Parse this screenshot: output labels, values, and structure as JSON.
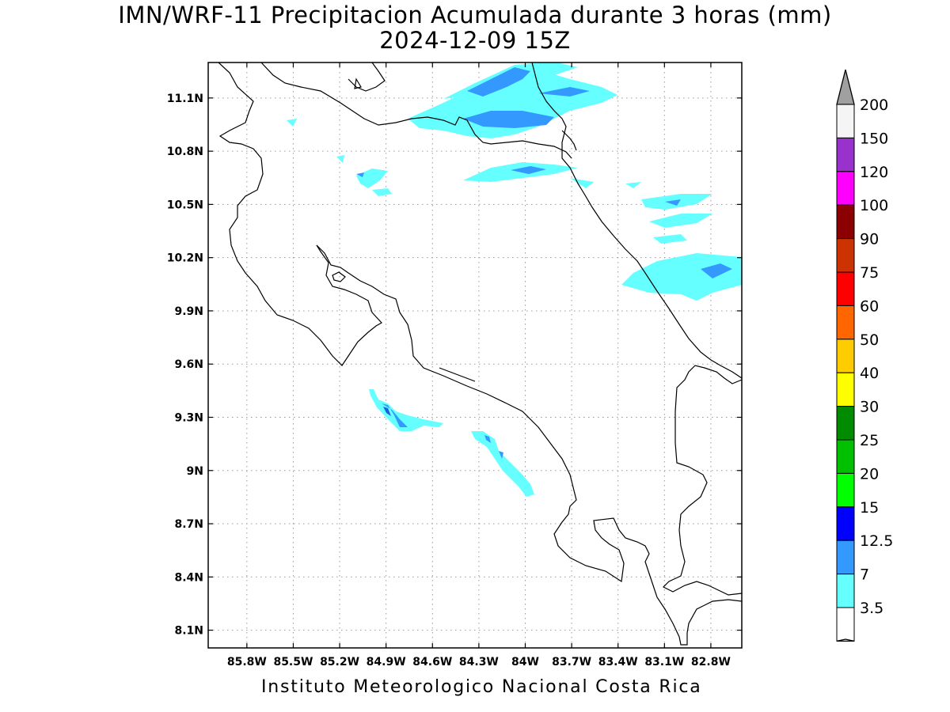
{
  "header": {
    "title": "IMN/WRF-11 Precipitacion Acumulada durante 3 horas (mm)",
    "date": "2024-12-09 15Z"
  },
  "footer": {
    "credit": "Instituto Meteorologico Nacional Costa Rica"
  },
  "map": {
    "lon_range": [
      -86.05,
      -82.6
    ],
    "lat_range": [
      8.0,
      11.3
    ],
    "grid": true,
    "lat_ticks": [
      {
        "value": 11.1,
        "label": "11.1N"
      },
      {
        "value": 10.8,
        "label": "10.8N"
      },
      {
        "value": 10.5,
        "label": "10.5N"
      },
      {
        "value": 10.2,
        "label": "10.2N"
      },
      {
        "value": 9.9,
        "label": "9.9N"
      },
      {
        "value": 9.6,
        "label": "9.6N"
      },
      {
        "value": 9.3,
        "label": "9.3N"
      },
      {
        "value": 9.0,
        "label": "9N"
      },
      {
        "value": 8.7,
        "label": "8.7N"
      },
      {
        "value": 8.4,
        "label": "8.4N"
      },
      {
        "value": 8.1,
        "label": "8.1N"
      }
    ],
    "lon_ticks": [
      {
        "value": -85.8,
        "label": "85.8W"
      },
      {
        "value": -85.5,
        "label": "85.5W"
      },
      {
        "value": -85.2,
        "label": "85.2W"
      },
      {
        "value": -84.9,
        "label": "84.9W"
      },
      {
        "value": -84.6,
        "label": "84.6W"
      },
      {
        "value": -84.3,
        "label": "84.3W"
      },
      {
        "value": -84.0,
        "label": "84W"
      },
      {
        "value": -83.7,
        "label": "83.7W"
      },
      {
        "value": -83.4,
        "label": "83.4W"
      },
      {
        "value": -83.1,
        "label": "83.1W"
      },
      {
        "value": -82.8,
        "label": "82.8W"
      }
    ]
  },
  "colorbar": {
    "top_color": "#a0a0a0",
    "bottom_color": "#ffffff",
    "levels": [
      {
        "label": "200",
        "color": "#f5f5f5"
      },
      {
        "label": "150",
        "color": "#9932cc"
      },
      {
        "label": "120",
        "color": "#ff00ff"
      },
      {
        "label": "100",
        "color": "#8b0000"
      },
      {
        "label": "90",
        "color": "#cc3300"
      },
      {
        "label": "75",
        "color": "#ff0000"
      },
      {
        "label": "60",
        "color": "#ff6600"
      },
      {
        "label": "50",
        "color": "#ffcc00"
      },
      {
        "label": "40",
        "color": "#ffff00"
      },
      {
        "label": "30",
        "color": "#008b00"
      },
      {
        "label": "25",
        "color": "#00c000"
      },
      {
        "label": "20",
        "color": "#00ff00"
      },
      {
        "label": "15",
        "color": "#0000ff"
      },
      {
        "label": "12.5",
        "color": "#3399ff"
      },
      {
        "label": "7",
        "color": "#66ffff"
      },
      {
        "label": "3.5",
        "color": "#ffffff"
      }
    ]
  },
  "precip_colors": {
    "light": "#66ffff",
    "medium": "#3399ff",
    "heavy": "#1e5fdc"
  }
}
